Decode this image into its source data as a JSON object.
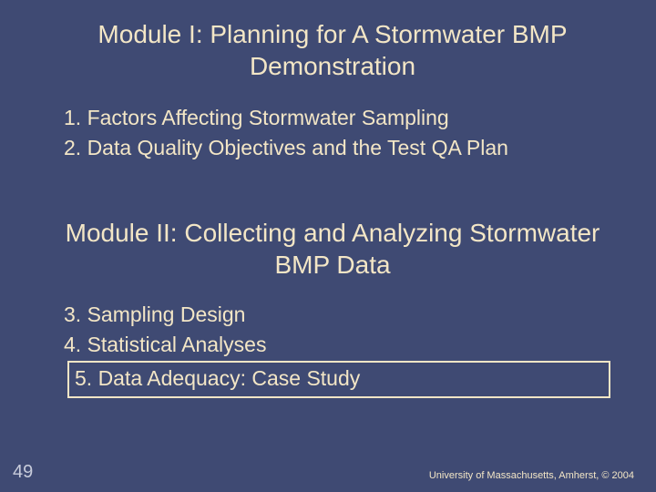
{
  "colors": {
    "background": "#3f4a73",
    "title": "#f3e6c6",
    "text": "#f3e6c6",
    "highlight_border": "#f3e6c6",
    "slide_number": "#c8ccdb",
    "footer": "#f3e6c6"
  },
  "module1": {
    "title": "Module I: Planning for A Stormwater BMP Demonstration",
    "items": [
      "1. Factors Affecting Stormwater Sampling",
      "2. Data Quality Objectives and the Test QA Plan"
    ]
  },
  "module2": {
    "title": "Module II: Collecting and Analyzing Stormwater BMP Data",
    "items": [
      "3. Sampling Design",
      "4. Statistical Analyses"
    ],
    "highlighted_item": "5. Data Adequacy: Case Study"
  },
  "slide_number": "49",
  "footer": "University of Massachusetts, Amherst, © 2004"
}
